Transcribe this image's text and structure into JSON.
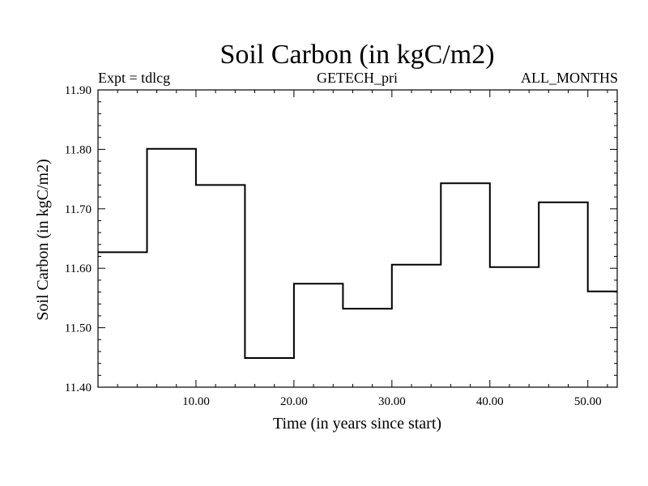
{
  "chart_data": {
    "type": "line",
    "step": true,
    "title": "Soil Carbon (in kgC/m2)",
    "subtitle_left": "Expt = tdlcg",
    "subtitle_center": "GETECH_pri",
    "subtitle_right": "ALL_MONTHS",
    "xlabel": "Time (in years since start)",
    "ylabel": "Soil Carbon (in kgC/m2)",
    "xlim": [
      0,
      53
    ],
    "ylim": [
      11.4,
      11.9
    ],
    "x_ticks": [
      10,
      20,
      30,
      40,
      50
    ],
    "x_tick_labels": [
      "10.00",
      "20.00",
      "30.00",
      "40.00",
      "50.00"
    ],
    "y_ticks": [
      11.4,
      11.5,
      11.6,
      11.7,
      11.8,
      11.9
    ],
    "y_tick_labels": [
      "11.40",
      "11.50",
      "11.60",
      "11.70",
      "11.80",
      "11.90"
    ],
    "series": [
      {
        "name": "Soil Carbon",
        "segments": [
          {
            "x0": 0,
            "x1": 5,
            "y": 11.627
          },
          {
            "x0": 5,
            "x1": 10,
            "y": 11.801
          },
          {
            "x0": 10,
            "x1": 15,
            "y": 11.74
          },
          {
            "x0": 15,
            "x1": 20,
            "y": 11.449
          },
          {
            "x0": 20,
            "x1": 25,
            "y": 11.574
          },
          {
            "x0": 25,
            "x1": 30,
            "y": 11.532
          },
          {
            "x0": 30,
            "x1": 35,
            "y": 11.606
          },
          {
            "x0": 35,
            "x1": 40,
            "y": 11.743
          },
          {
            "x0": 40,
            "x1": 45,
            "y": 11.602
          },
          {
            "x0": 45,
            "x1": 50,
            "y": 11.711
          },
          {
            "x0": 50,
            "x1": 53,
            "y": 11.561
          }
        ]
      }
    ]
  },
  "colors": {
    "line": "#000000",
    "axis": "#000000",
    "background": "#ffffff"
  }
}
